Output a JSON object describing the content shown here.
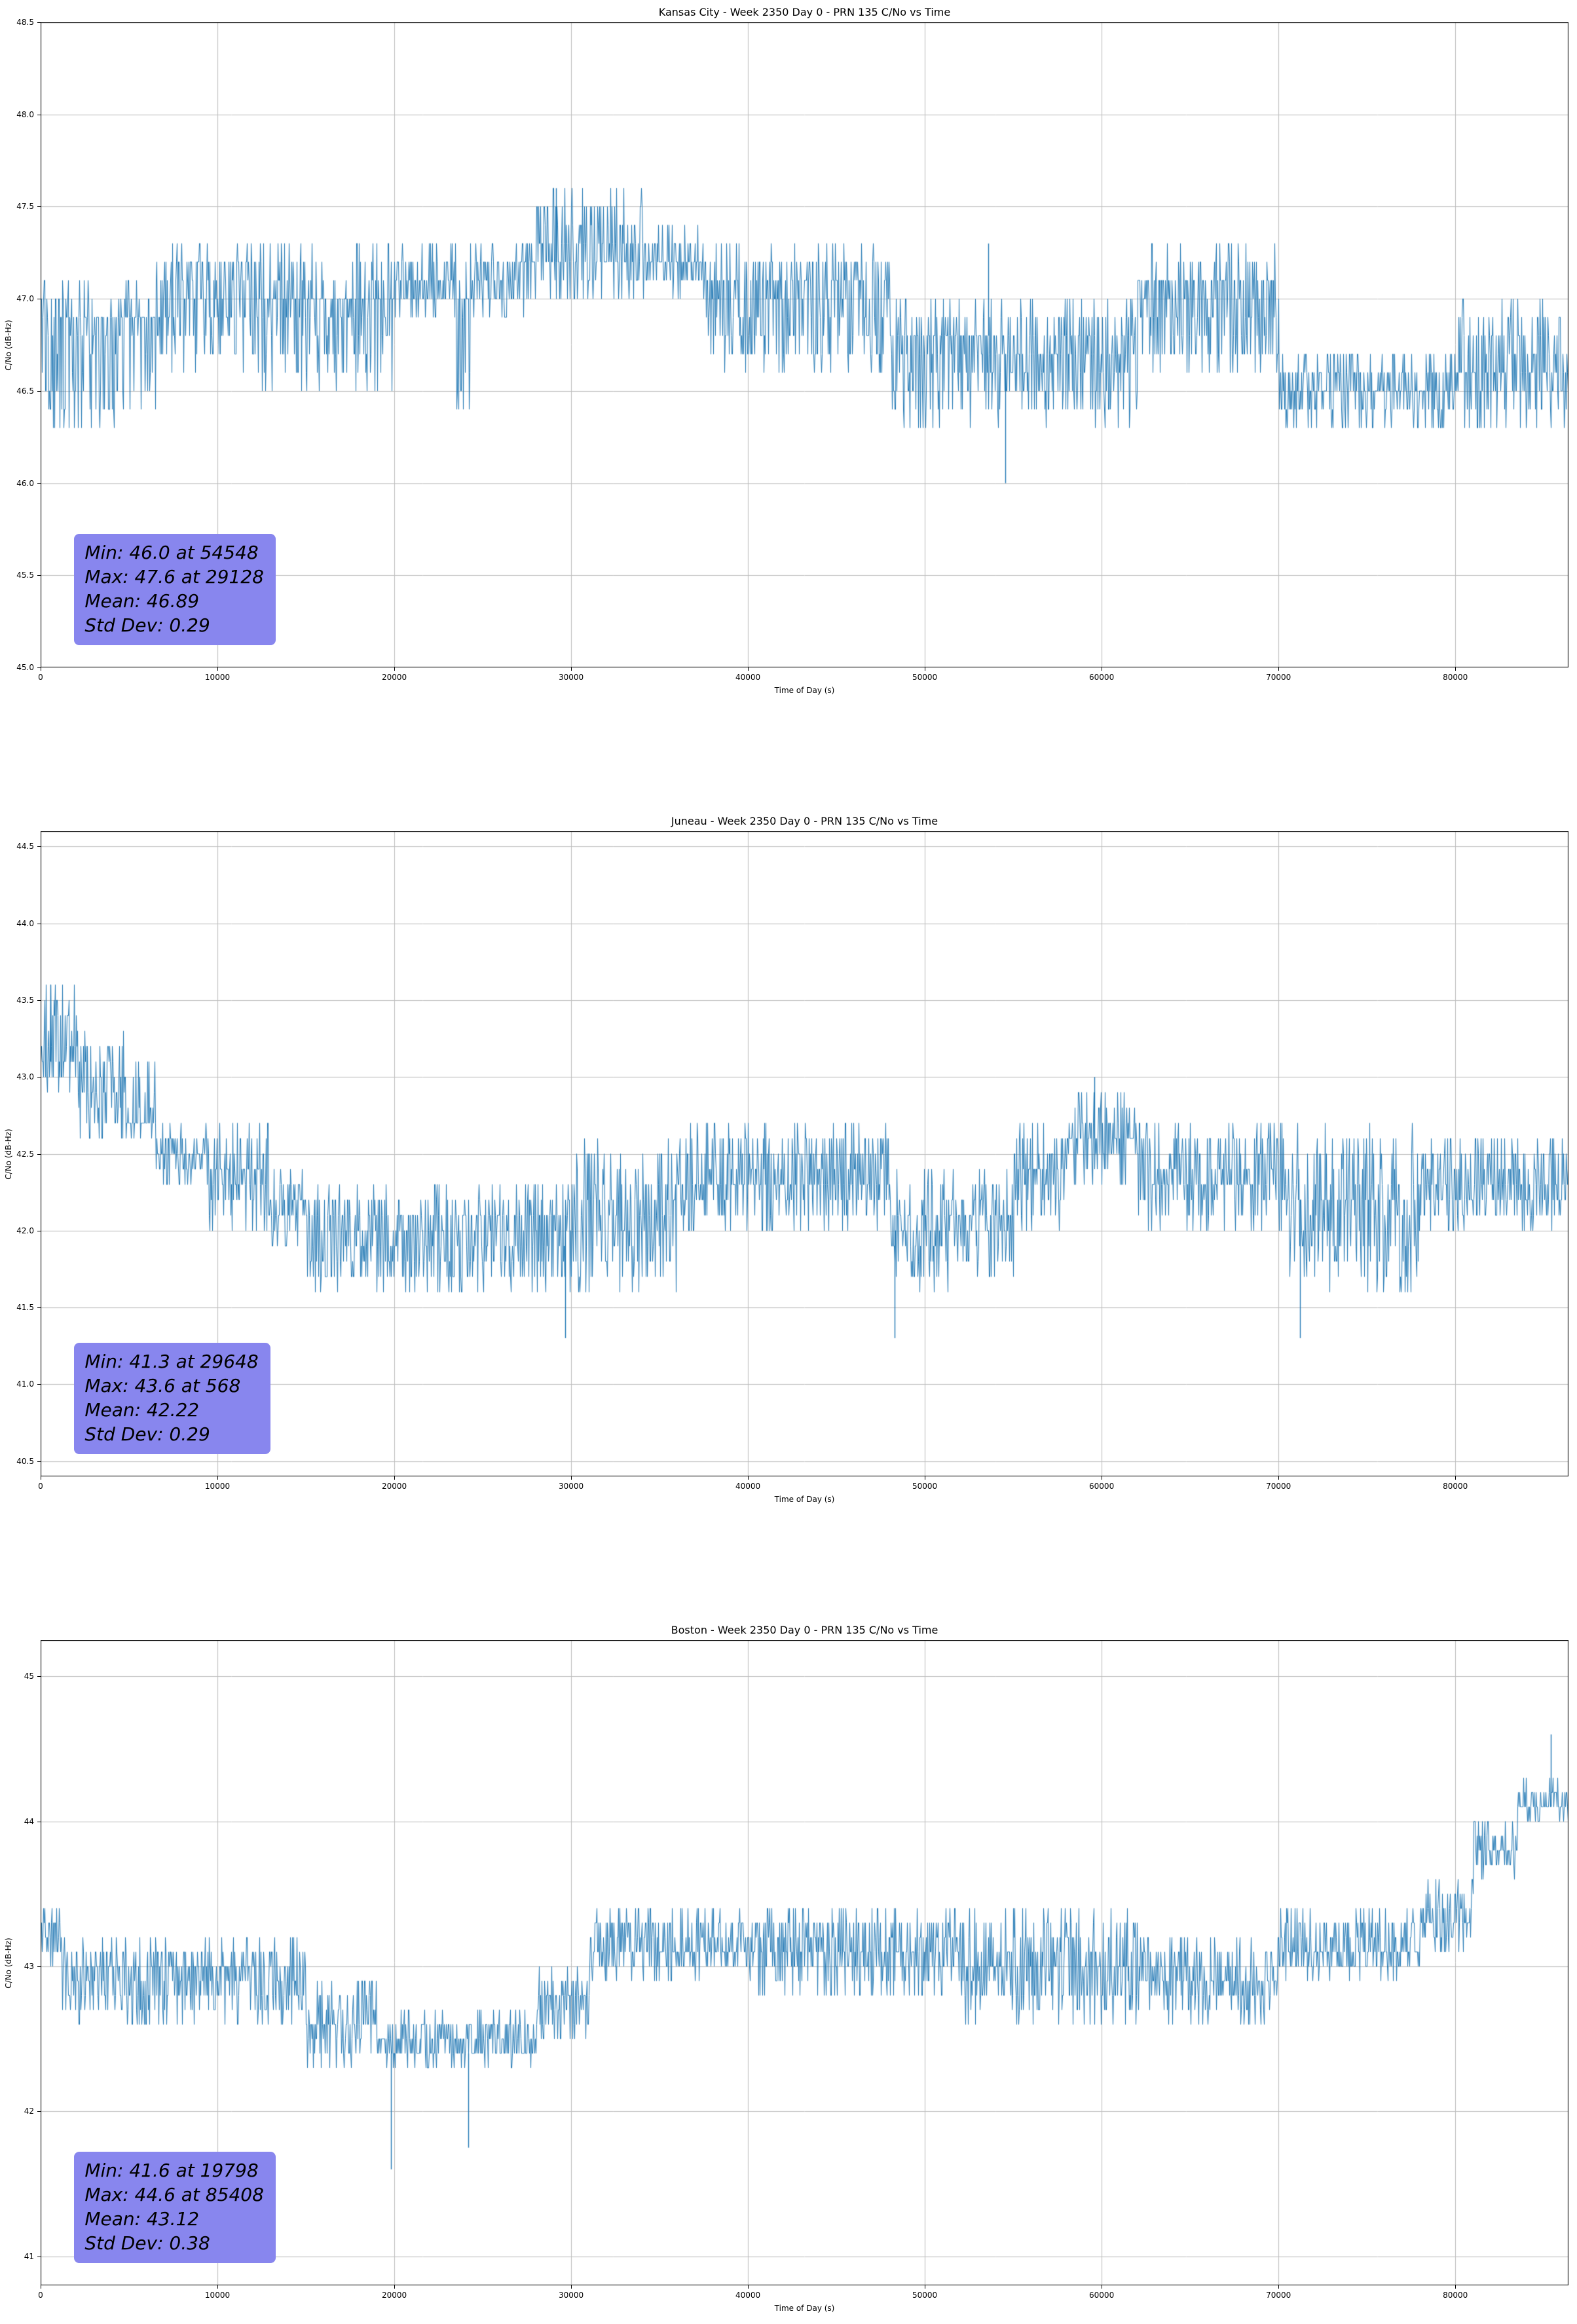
{
  "figure": {
    "background": "#ffffff",
    "line_color": "#1f77b4",
    "grid_color": "#bcbcbc",
    "stats_box_color": "#8886ee"
  },
  "chart_data": [
    {
      "type": "line",
      "station": "Kansas City",
      "week": 2350,
      "day": 0,
      "prn": 135,
      "title": "Kansas City - Week 2350 Day 0 - PRN 135 C/No vs Time",
      "xlabel": "Time of Day (s)",
      "ylabel": "C/No (dB-Hz)",
      "xlim": [
        0,
        86400
      ],
      "ylim": [
        45.0,
        48.5
      ],
      "xtick_values": [
        0,
        10000,
        20000,
        30000,
        40000,
        50000,
        60000,
        70000,
        80000
      ],
      "xtick_labels": [
        "0",
        "10000",
        "20000",
        "30000",
        "40000",
        "50000",
        "60000",
        "70000",
        "80000"
      ],
      "ytick_values": [
        45.0,
        45.5,
        46.0,
        46.5,
        47.0,
        47.5,
        48.0,
        48.5
      ],
      "ytick_labels": [
        "45.0",
        "45.5",
        "46.0",
        "46.5",
        "47.0",
        "47.5",
        "48.0",
        "48.5"
      ],
      "line_color": "#1f77b4",
      "grid_color": "#bcbcbc",
      "stats_box_color": "#8886ee",
      "quantization": 0.1,
      "series_segments": [
        [
          0,
          1800,
          46.3,
          47.1,
          47.0,
          0.95
        ],
        [
          1800,
          6500,
          46.3,
          47.1,
          46.9,
          0.7
        ],
        [
          6500,
          12500,
          46.6,
          47.3,
          47.2,
          0.9
        ],
        [
          12500,
          20000,
          46.5,
          47.3,
          47.0,
          0.75
        ],
        [
          20000,
          23500,
          46.9,
          47.3,
          47.0,
          0.9
        ],
        [
          23500,
          24500,
          46.4,
          47.3,
          47.0,
          0.8
        ],
        [
          24500,
          28000,
          46.9,
          47.3,
          47.2,
          0.85
        ],
        [
          28000,
          34000,
          47.0,
          47.6,
          47.2,
          0.9
        ],
        [
          34000,
          37500,
          47.0,
          47.4,
          47.2,
          0.8
        ],
        [
          37500,
          48000,
          46.6,
          47.3,
          47.1,
          0.9
        ],
        [
          48000,
          54000,
          46.3,
          47.0,
          46.8,
          0.85
        ],
        [
          54000,
          62000,
          46.3,
          47.0,
          46.7,
          0.9
        ],
        [
          62000,
          70000,
          46.6,
          47.3,
          47.1,
          0.85
        ],
        [
          70000,
          80000,
          46.3,
          46.7,
          46.5,
          0.9
        ],
        [
          80000,
          86400,
          46.3,
          47.0,
          46.6,
          0.9
        ]
      ],
      "spikes": [
        [
          54548,
          46.0
        ],
        [
          29128,
          47.6
        ],
        [
          53600,
          47.3
        ]
      ],
      "stats": {
        "min": 46.0,
        "min_time": 54548,
        "max": 47.6,
        "max_time": 29128,
        "mean": 46.89,
        "std_dev": 0.29,
        "lines": [
          "Min: 46.0 at 54548",
          "Max: 47.6 at 29128",
          "Mean: 46.89",
          "Std Dev: 0.29"
        ]
      }
    },
    {
      "type": "line",
      "station": "Juneau",
      "week": 2350,
      "day": 0,
      "prn": 135,
      "title": "Juneau - Week 2350 Day 0 - PRN 135 C/No vs Time",
      "xlabel": "Time of Day (s)",
      "ylabel": "C/No (dB-Hz)",
      "xlim": [
        0,
        86400
      ],
      "ylim": [
        40.4,
        44.6
      ],
      "xtick_values": [
        0,
        10000,
        20000,
        30000,
        40000,
        50000,
        60000,
        70000,
        80000
      ],
      "xtick_labels": [
        "0",
        "10000",
        "20000",
        "30000",
        "40000",
        "50000",
        "60000",
        "70000",
        "80000"
      ],
      "ytick_values": [
        40.5,
        41.0,
        41.5,
        42.0,
        42.5,
        43.0,
        43.5,
        44.0,
        44.5
      ],
      "ytick_labels": [
        "40.5",
        "41.0",
        "41.5",
        "42.0",
        "42.5",
        "43.0",
        "43.5",
        "44.0",
        "44.5"
      ],
      "line_color": "#1f77b4",
      "grid_color": "#bcbcbc",
      "stats_box_color": "#8886ee",
      "quantization": 0.1,
      "series_segments": [
        [
          0,
          2000,
          42.9,
          43.6,
          43.1,
          0.9
        ],
        [
          2000,
          4800,
          42.6,
          43.3,
          42.9,
          0.85
        ],
        [
          4800,
          6500,
          42.6,
          43.1,
          42.7,
          0.6
        ],
        [
          6500,
          9500,
          42.3,
          42.7,
          42.5,
          0.9
        ],
        [
          9500,
          13000,
          42.0,
          42.7,
          42.4,
          0.85
        ],
        [
          13000,
          15000,
          41.9,
          42.4,
          42.1,
          0.8
        ],
        [
          15000,
          30000,
          41.6,
          42.3,
          42.1,
          0.9
        ],
        [
          30000,
          36000,
          41.6,
          42.6,
          42.2,
          0.85
        ],
        [
          36000,
          48000,
          42.0,
          42.7,
          42.3,
          0.9
        ],
        [
          48000,
          55000,
          41.6,
          42.4,
          42.1,
          0.85
        ],
        [
          55000,
          58000,
          42.0,
          42.7,
          42.4,
          0.8
        ],
        [
          58000,
          62000,
          42.3,
          42.9,
          42.6,
          0.85
        ],
        [
          62000,
          70000,
          42.0,
          42.7,
          42.3,
          0.85
        ],
        [
          70000,
          78000,
          41.6,
          42.7,
          42.2,
          0.9
        ],
        [
          78000,
          86400,
          42.0,
          42.6,
          42.2,
          0.9
        ]
      ],
      "spikes": [
        [
          29648,
          41.3
        ],
        [
          568,
          43.6
        ],
        [
          48300,
          41.3
        ],
        [
          59600,
          43.0
        ],
        [
          71200,
          41.3
        ]
      ],
      "stats": {
        "min": 41.3,
        "min_time": 29648,
        "max": 43.6,
        "max_time": 568,
        "mean": 42.22,
        "std_dev": 0.29,
        "lines": [
          "Min: 41.3 at 29648",
          "Max: 43.6 at 568",
          "Mean: 42.22",
          "Std Dev: 0.29"
        ]
      }
    },
    {
      "type": "line",
      "station": "Boston",
      "week": 2350,
      "day": 0,
      "prn": 135,
      "title": "Boston - Week 2350 Day 0 - PRN 135 C/No vs Time",
      "xlabel": "Time of Day (s)",
      "ylabel": "C/No (dB-Hz)",
      "xlim": [
        0,
        86400
      ],
      "ylim": [
        40.8,
        45.25
      ],
      "xtick_values": [
        0,
        10000,
        20000,
        30000,
        40000,
        50000,
        60000,
        70000,
        80000
      ],
      "xtick_labels": [
        "0",
        "10000",
        "20000",
        "30000",
        "40000",
        "50000",
        "60000",
        "70000",
        "80000"
      ],
      "ytick_values": [
        41,
        42,
        43,
        44,
        45
      ],
      "ytick_labels": [
        "41",
        "42",
        "43",
        "44",
        "45"
      ],
      "line_color": "#1f77b4",
      "grid_color": "#bcbcbc",
      "stats_box_color": "#8886ee",
      "quantization": 0.1,
      "series_segments": [
        [
          0,
          1200,
          43.0,
          43.4,
          43.2,
          0.9
        ],
        [
          1200,
          15000,
          42.6,
          43.2,
          43.0,
          0.9
        ],
        [
          15000,
          19000,
          42.3,
          42.9,
          42.6,
          0.85
        ],
        [
          19000,
          28000,
          42.3,
          42.7,
          42.4,
          0.85
        ],
        [
          28000,
          31000,
          42.5,
          43.0,
          42.8,
          0.85
        ],
        [
          31000,
          40000,
          42.9,
          43.4,
          43.1,
          0.9
        ],
        [
          40000,
          52000,
          42.8,
          43.4,
          43.1,
          0.9
        ],
        [
          52000,
          62000,
          42.6,
          43.4,
          43.0,
          0.9
        ],
        [
          62000,
          70000,
          42.6,
          43.2,
          42.9,
          0.85
        ],
        [
          70000,
          78000,
          42.9,
          43.4,
          43.1,
          0.85
        ],
        [
          78000,
          81000,
          43.1,
          43.6,
          43.3,
          0.85
        ],
        [
          81000,
          83500,
          43.6,
          44.0,
          43.8,
          0.85
        ],
        [
          83500,
          86400,
          44.0,
          44.3,
          44.1,
          0.9
        ]
      ],
      "spikes": [
        [
          19798,
          41.6
        ],
        [
          24200,
          41.75
        ],
        [
          85408,
          44.6
        ]
      ],
      "stats": {
        "min": 41.6,
        "min_time": 19798,
        "max": 44.6,
        "max_time": 85408,
        "mean": 43.12,
        "std_dev": 0.38,
        "lines": [
          "Min: 41.6 at 19798",
          "Max: 44.6 at 85408",
          "Mean: 43.12",
          "Std Dev: 0.38"
        ]
      }
    }
  ]
}
